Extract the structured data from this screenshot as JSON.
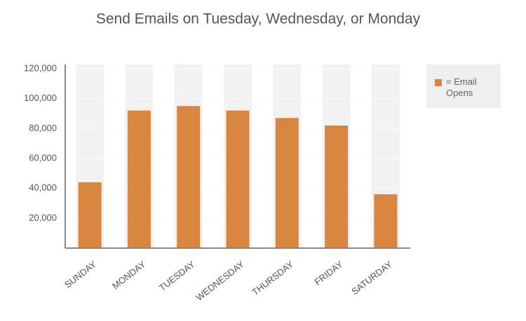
{
  "chart_data": {
    "type": "bar",
    "title": "Send Emails on Tuesday, Wednesday, or Monday",
    "categories": [
      "SUNDAY",
      "MONDAY",
      "TUESDAY",
      "WEDNESDAY",
      "THURSDAY",
      "FRIDAY",
      "SATURDAY"
    ],
    "series": [
      {
        "name": "= Email Opens",
        "color": "#d9853f",
        "values": [
          44000,
          92000,
          95000,
          92000,
          87000,
          82000,
          36000
        ]
      }
    ],
    "ylim": [
      0,
      120000
    ],
    "yticks": [
      {
        "value": 20000,
        "label": "20,000"
      },
      {
        "value": 40000,
        "label": "40,000"
      },
      {
        "value": 60000,
        "label": "60,000"
      },
      {
        "value": 80000,
        "label": "80,000"
      },
      {
        "value": 100000,
        "label": "100,000"
      },
      {
        "value": 120000,
        "label": "120,000"
      }
    ],
    "grid": true,
    "legend": "top-right"
  }
}
